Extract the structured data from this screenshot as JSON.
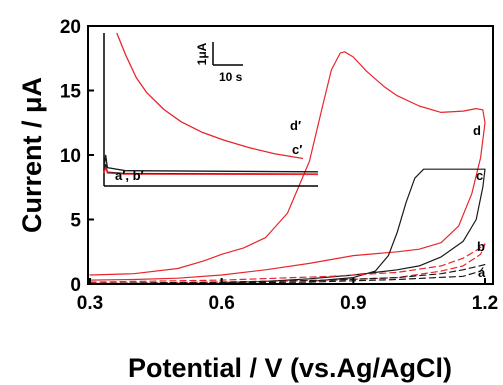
{
  "chart_data": {
    "type": "line",
    "xlabel": "Potential / V (vs.Ag/AgCl)",
    "ylabel": "Current / μA",
    "xlim": [
      0.3,
      1.2
    ],
    "ylim": [
      0,
      20
    ],
    "x_ticks": [
      "0.3",
      "0.6",
      "0.9",
      "1.2"
    ],
    "y_ticks": [
      "0",
      "5",
      "10",
      "15",
      "20"
    ],
    "grid": false,
    "series": [
      {
        "name": "d",
        "color": "#e8262b",
        "dash": false,
        "points": [
          [
            0.3,
            0.7
          ],
          [
            0.4,
            0.8
          ],
          [
            0.5,
            1.2
          ],
          [
            0.56,
            1.8
          ],
          [
            0.6,
            2.3
          ],
          [
            0.65,
            2.8
          ],
          [
            0.7,
            3.6
          ],
          [
            0.75,
            5.5
          ],
          [
            0.8,
            9.5
          ],
          [
            0.83,
            13.8
          ],
          [
            0.85,
            16.6
          ],
          [
            0.87,
            17.9
          ],
          [
            0.88,
            18.0
          ],
          [
            0.9,
            17.6
          ],
          [
            0.93,
            16.5
          ],
          [
            0.97,
            15.3
          ],
          [
            1.0,
            14.6
          ],
          [
            1.05,
            13.8
          ],
          [
            1.1,
            13.3
          ],
          [
            1.15,
            13.4
          ],
          [
            1.18,
            13.6
          ],
          [
            1.195,
            13.5
          ],
          [
            1.2,
            12.5
          ],
          [
            1.19,
            9.8
          ],
          [
            1.17,
            7.0
          ],
          [
            1.14,
            4.5
          ],
          [
            1.1,
            3.2
          ],
          [
            1.05,
            2.7
          ],
          [
            1.0,
            2.5
          ],
          [
            0.9,
            2.2
          ],
          [
            0.8,
            1.6
          ],
          [
            0.7,
            1.1
          ],
          [
            0.6,
            0.7
          ],
          [
            0.5,
            0.45
          ],
          [
            0.4,
            0.35
          ],
          [
            0.3,
            0.3
          ]
        ]
      },
      {
        "name": "c",
        "color": "#1a1a1a",
        "dash": false,
        "points": [
          [
            0.8,
            0.2
          ],
          [
            0.9,
            0.5
          ],
          [
            0.95,
            1.0
          ],
          [
            0.98,
            2.2
          ],
          [
            1.0,
            4.0
          ],
          [
            1.02,
            6.3
          ],
          [
            1.04,
            8.2
          ],
          [
            1.06,
            8.9
          ],
          [
            1.1,
            8.9
          ],
          [
            1.15,
            8.9
          ],
          [
            1.2,
            8.9
          ],
          [
            1.195,
            7.5
          ],
          [
            1.18,
            5.0
          ],
          [
            1.15,
            3.3
          ],
          [
            1.1,
            2.1
          ],
          [
            1.05,
            1.4
          ],
          [
            1.0,
            1.1
          ],
          [
            0.9,
            0.7
          ],
          [
            0.8,
            0.4
          ],
          [
            0.7,
            0.2
          ],
          [
            0.6,
            0.1
          ]
        ]
      },
      {
        "name": "b",
        "color": "#e8262b",
        "dash": true,
        "points": [
          [
            0.3,
            0.15
          ],
          [
            0.6,
            0.3
          ],
          [
            0.85,
            0.6
          ],
          [
            1.0,
            0.9
          ],
          [
            1.1,
            1.4
          ],
          [
            1.15,
            2.0
          ],
          [
            1.18,
            2.6
          ],
          [
            1.2,
            3.1
          ],
          [
            1.19,
            2.3
          ],
          [
            1.15,
            1.4
          ],
          [
            1.1,
            1.0
          ],
          [
            1.0,
            0.5
          ],
          [
            0.85,
            0.3
          ],
          [
            0.6,
            0.15
          ],
          [
            0.3,
            0.05
          ]
        ]
      },
      {
        "name": "a",
        "color": "#1a1a1a",
        "dash": true,
        "points": [
          [
            0.3,
            0.05
          ],
          [
            0.6,
            0.15
          ],
          [
            0.85,
            0.3
          ],
          [
            1.0,
            0.5
          ],
          [
            1.1,
            0.8
          ],
          [
            1.15,
            1.1
          ],
          [
            1.2,
            1.5
          ],
          [
            1.19,
            1.0
          ],
          [
            1.15,
            0.6
          ],
          [
            1.0,
            0.35
          ],
          [
            0.8,
            0.15
          ],
          [
            0.5,
            0.05
          ]
        ]
      }
    ],
    "curve_labels": [
      "d",
      "c",
      "b",
      "a"
    ],
    "inset": {
      "type": "line",
      "scale_bar_y": "1μA",
      "scale_bar_x": "10 s",
      "curve_labels": [
        "d′",
        "c′",
        "a′, b′"
      ],
      "series": [
        {
          "name": "d′",
          "color": "#e8262b",
          "points": [
            [
              0.06,
              1.0
            ],
            [
              0.1,
              0.86
            ],
            [
              0.15,
              0.71
            ],
            [
              0.2,
              0.61
            ],
            [
              0.28,
              0.5
            ],
            [
              0.36,
              0.42
            ],
            [
              0.46,
              0.35
            ],
            [
              0.56,
              0.3
            ],
            [
              0.68,
              0.25
            ],
            [
              0.8,
              0.21
            ],
            [
              0.93,
              0.18
            ]
          ]
        },
        {
          "name": "c′",
          "color": "#1a1a1a",
          "points": [
            [
              0.0,
              0.12
            ],
            [
              0.008,
              0.2
            ],
            [
              0.016,
              0.12
            ],
            [
              0.1,
              0.1
            ],
            [
              1.0,
              0.093
            ]
          ]
        },
        {
          "name": "a′",
          "color": "#1a1a1a",
          "points": [
            [
              0.0,
              0.09
            ],
            [
              0.008,
              0.14
            ],
            [
              0.016,
              0.09
            ],
            [
              0.1,
              0.082
            ],
            [
              1.0,
              0.078
            ]
          ]
        },
        {
          "name": "b′",
          "color": "#e8262b",
          "points": [
            [
              0.0,
              0.085
            ],
            [
              0.008,
              0.12
            ],
            [
              0.016,
              0.085
            ],
            [
              0.1,
              0.078
            ],
            [
              1.0,
              0.075
            ]
          ]
        }
      ]
    }
  }
}
